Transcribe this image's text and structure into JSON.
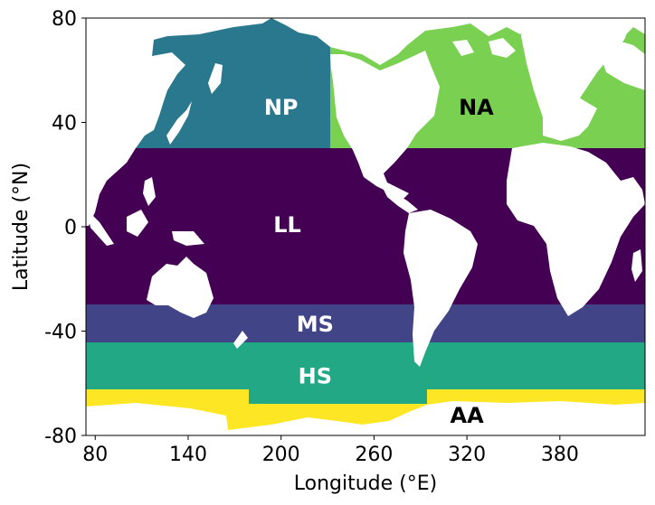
{
  "axes": {
    "xlabel": "Longitude (°E)",
    "ylabel": "Latitude (°N)",
    "xlim": [
      74,
      435
    ],
    "ylim": [
      -80,
      80
    ],
    "xticks": [
      80,
      140,
      200,
      260,
      320,
      380
    ],
    "yticks": [
      80,
      40,
      0,
      -40,
      -80
    ]
  },
  "colors": {
    "land": "#ffffff",
    "frame": "#000000"
  },
  "regions": [
    {
      "id": "NP",
      "name": "NP",
      "fill": "#2a788e",
      "label_color": "#ffffff",
      "lat_range": [
        30,
        80
      ],
      "label_at": [
        200,
        46
      ]
    },
    {
      "id": "NA",
      "name": "NA",
      "fill": "#7ad151",
      "label_color": "#000000",
      "lat_range": [
        30,
        80
      ],
      "label_at": [
        326,
        46
      ]
    },
    {
      "id": "LL",
      "name": "LL",
      "fill": "#440154",
      "label_color": "#ffffff",
      "lat_range": [
        -30,
        30
      ],
      "label_at": [
        204,
        1
      ]
    },
    {
      "id": "MS",
      "name": "MS",
      "fill": "#414487",
      "label_color": "#ffffff",
      "lat_range": [
        -45,
        -30
      ],
      "label_at": [
        222,
        -37
      ]
    },
    {
      "id": "HS",
      "name": "HS",
      "fill": "#22a884",
      "label_color": "#ffffff",
      "lat_range": [
        -65,
        -45
      ],
      "label_at": [
        222,
        -57
      ]
    },
    {
      "id": "AA",
      "name": "AA",
      "fill": "#fde725",
      "label_color": "#000000",
      "lat_range": [
        -80,
        -62
      ],
      "label_at": [
        320,
        -72
      ]
    }
  ]
}
